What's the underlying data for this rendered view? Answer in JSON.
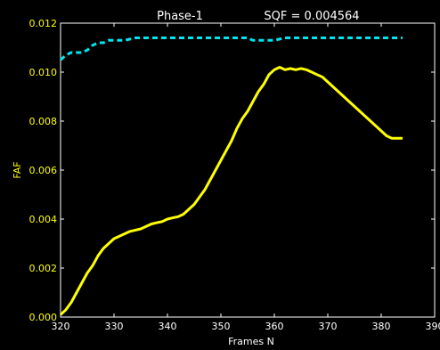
{
  "chart_data": {
    "type": "line",
    "title": "Phase-1",
    "subtitle": "SQF = 0.004564",
    "xlabel": "Frames N",
    "ylabel": "FAF",
    "xlim": [
      320,
      390
    ],
    "ylim": [
      0,
      0.012
    ],
    "x_ticks": [
      "320",
      "330",
      "340",
      "350",
      "360",
      "370",
      "380",
      "390"
    ],
    "y_ticks": [
      "0.000",
      "0.002",
      "0.004",
      "0.006",
      "0.008",
      "0.010",
      "0.012"
    ],
    "grid": false,
    "legend": "none",
    "colors": {
      "background": "#000000",
      "axis": "#ffffff",
      "x_tick_text": "#ffffff",
      "y_tick_text": "#ffff00",
      "ylabel_text": "#ffff00",
      "series_solid": "#ffff00",
      "series_dashed": "#00e5ee"
    },
    "series": [
      {
        "style": "solid",
        "color": "#ffff00",
        "x": [
          320,
          321,
          322,
          323,
          324,
          325,
          326,
          327,
          328,
          329,
          330,
          331,
          332,
          333,
          334,
          335,
          336,
          337,
          338,
          339,
          340,
          341,
          342,
          343,
          344,
          345,
          346,
          347,
          348,
          349,
          350,
          351,
          352,
          353,
          354,
          355,
          356,
          357,
          358,
          359,
          360,
          361,
          362,
          363,
          364,
          365,
          366,
          367,
          368,
          369,
          370,
          371,
          372,
          373,
          374,
          375,
          376,
          377,
          378,
          379,
          380,
          381,
          382,
          383,
          384
        ],
        "y": [
          0.0001,
          0.0003,
          0.0006,
          0.001,
          0.0014,
          0.0018,
          0.0021,
          0.0025,
          0.0028,
          0.003,
          0.0032,
          0.0033,
          0.0034,
          0.0035,
          0.00355,
          0.0036,
          0.0037,
          0.0038,
          0.00385,
          0.0039,
          0.004,
          0.00405,
          0.0041,
          0.0042,
          0.0044,
          0.0046,
          0.0049,
          0.0052,
          0.0056,
          0.006,
          0.0064,
          0.0068,
          0.0072,
          0.0077,
          0.0081,
          0.0084,
          0.0088,
          0.0092,
          0.0095,
          0.0099,
          0.0101,
          0.0102,
          0.0101,
          0.01015,
          0.0101,
          0.01015,
          0.0101,
          0.01,
          0.0099,
          0.0098,
          0.0096,
          0.0094,
          0.0092,
          0.009,
          0.0088,
          0.0086,
          0.0084,
          0.0082,
          0.008,
          0.0078,
          0.0076,
          0.0074,
          0.0073,
          0.0073,
          0.0073
        ]
      },
      {
        "style": "dashed",
        "color": "#00e5ee",
        "x": [
          320,
          321,
          322,
          323,
          324,
          325,
          326,
          327,
          328,
          329,
          330,
          332,
          334,
          336,
          338,
          340,
          342,
          344,
          346,
          348,
          350,
          352,
          354,
          355,
          356,
          358,
          360,
          362,
          364,
          366,
          368,
          370,
          372,
          374,
          376,
          378,
          380,
          382,
          384
        ],
        "y": [
          0.0105,
          0.0107,
          0.0108,
          0.0108,
          0.0108,
          0.0109,
          0.0111,
          0.0112,
          0.0112,
          0.0113,
          0.0113,
          0.0113,
          0.0114,
          0.0114,
          0.0114,
          0.0114,
          0.0114,
          0.0114,
          0.0114,
          0.0114,
          0.0114,
          0.0114,
          0.0114,
          0.0114,
          0.0113,
          0.0113,
          0.0113,
          0.0114,
          0.0114,
          0.0114,
          0.0114,
          0.0114,
          0.0114,
          0.0114,
          0.0114,
          0.0114,
          0.0114,
          0.0114,
          0.0114
        ]
      }
    ]
  }
}
